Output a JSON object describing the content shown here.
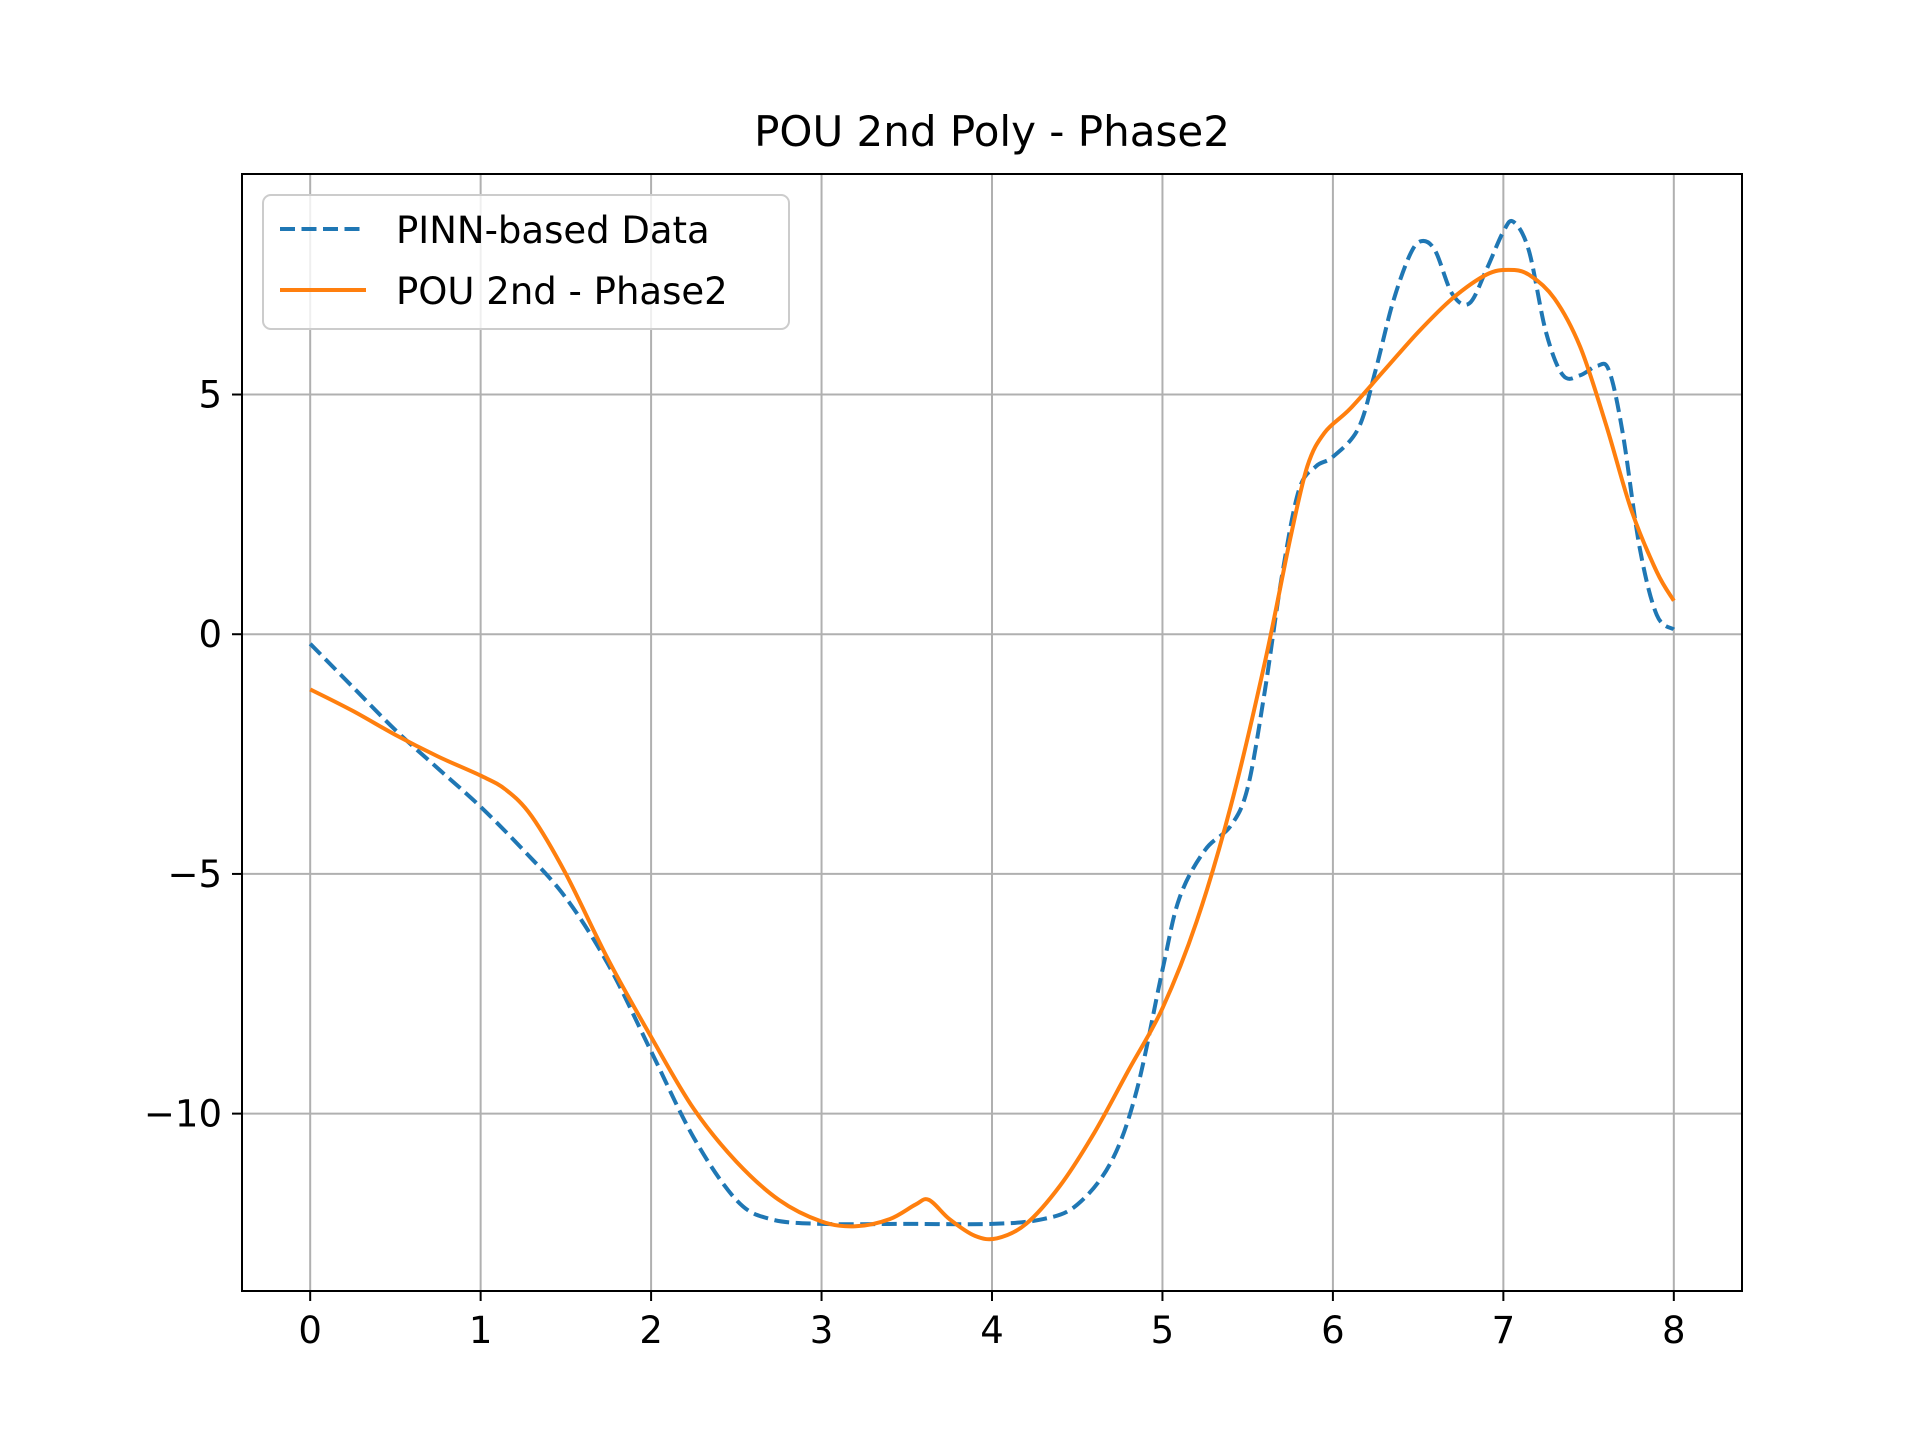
{
  "chart_data": {
    "type": "line",
    "title": "POU 2nd Poly - Phase2",
    "xlabel": "",
    "ylabel": "",
    "xlim": [
      -0.4,
      8.4
    ],
    "ylim": [
      -13.7,
      9.6
    ],
    "xticks": [
      0,
      1,
      2,
      3,
      4,
      5,
      6,
      7,
      8
    ],
    "xtick_labels": [
      "0",
      "1",
      "2",
      "3",
      "4",
      "5",
      "6",
      "7",
      "8"
    ],
    "yticks": [
      -10,
      -5,
      0,
      5
    ],
    "ytick_labels": [
      "−10",
      "−5",
      "0",
      "5"
    ],
    "grid": true,
    "legend_position": "top-left",
    "series": [
      {
        "name": "PINN-based Data",
        "color": "#1f77b4",
        "style": "dashed",
        "x": [
          0,
          0.25,
          0.5,
          0.75,
          1.0,
          1.25,
          1.5,
          1.75,
          2.0,
          2.25,
          2.5,
          2.7,
          3.0,
          3.5,
          4.0,
          4.3,
          4.5,
          4.7,
          4.85,
          5.0,
          5.1,
          5.25,
          5.4,
          5.5,
          5.6,
          5.7,
          5.8,
          5.9,
          6.0,
          6.15,
          6.25,
          6.35,
          6.45,
          6.52,
          6.6,
          6.7,
          6.8,
          6.9,
          7.0,
          7.06,
          7.15,
          7.25,
          7.35,
          7.45,
          7.55,
          7.62,
          7.7,
          7.8,
          7.9,
          8.0
        ],
        "values": [
          -0.2,
          -1.1,
          -2.0,
          -2.8,
          -3.6,
          -4.5,
          -5.5,
          -6.9,
          -8.7,
          -10.5,
          -11.8,
          -12.2,
          -12.3,
          -12.3,
          -12.3,
          -12.2,
          -11.9,
          -11.0,
          -9.5,
          -7.0,
          -5.5,
          -4.5,
          -4.0,
          -3.2,
          -1.2,
          1.2,
          3.0,
          3.5,
          3.7,
          4.3,
          5.5,
          6.9,
          7.9,
          8.2,
          8.0,
          7.1,
          6.9,
          7.6,
          8.4,
          8.6,
          8.0,
          6.3,
          5.4,
          5.4,
          5.6,
          5.5,
          4.2,
          1.8,
          0.4,
          0.1
        ]
      },
      {
        "name": "POU 2nd - Phase2",
        "color": "#ff7f0e",
        "style": "solid",
        "x": [
          0,
          0.25,
          0.5,
          0.75,
          1.0,
          1.15,
          1.3,
          1.5,
          1.75,
          2.0,
          2.25,
          2.5,
          2.75,
          3.0,
          3.2,
          3.4,
          3.55,
          3.63,
          3.75,
          3.9,
          4.03,
          4.2,
          4.4,
          4.6,
          4.8,
          5.0,
          5.2,
          5.4,
          5.6,
          5.75,
          5.85,
          5.95,
          6.1,
          6.3,
          6.5,
          6.7,
          6.9,
          7.03,
          7.15,
          7.3,
          7.45,
          7.6,
          7.75,
          7.9,
          8.0
        ],
        "values": [
          -1.15,
          -1.6,
          -2.1,
          -2.55,
          -2.95,
          -3.25,
          -3.8,
          -5.0,
          -6.8,
          -8.4,
          -9.9,
          -11.0,
          -11.8,
          -12.25,
          -12.35,
          -12.2,
          -11.9,
          -11.8,
          -12.2,
          -12.55,
          -12.6,
          -12.3,
          -11.5,
          -10.4,
          -9.1,
          -7.8,
          -6.0,
          -3.6,
          -0.6,
          2.0,
          3.5,
          4.2,
          4.7,
          5.5,
          6.3,
          7.0,
          7.5,
          7.6,
          7.5,
          7.0,
          6.0,
          4.4,
          2.6,
          1.3,
          0.7
        ]
      }
    ]
  }
}
